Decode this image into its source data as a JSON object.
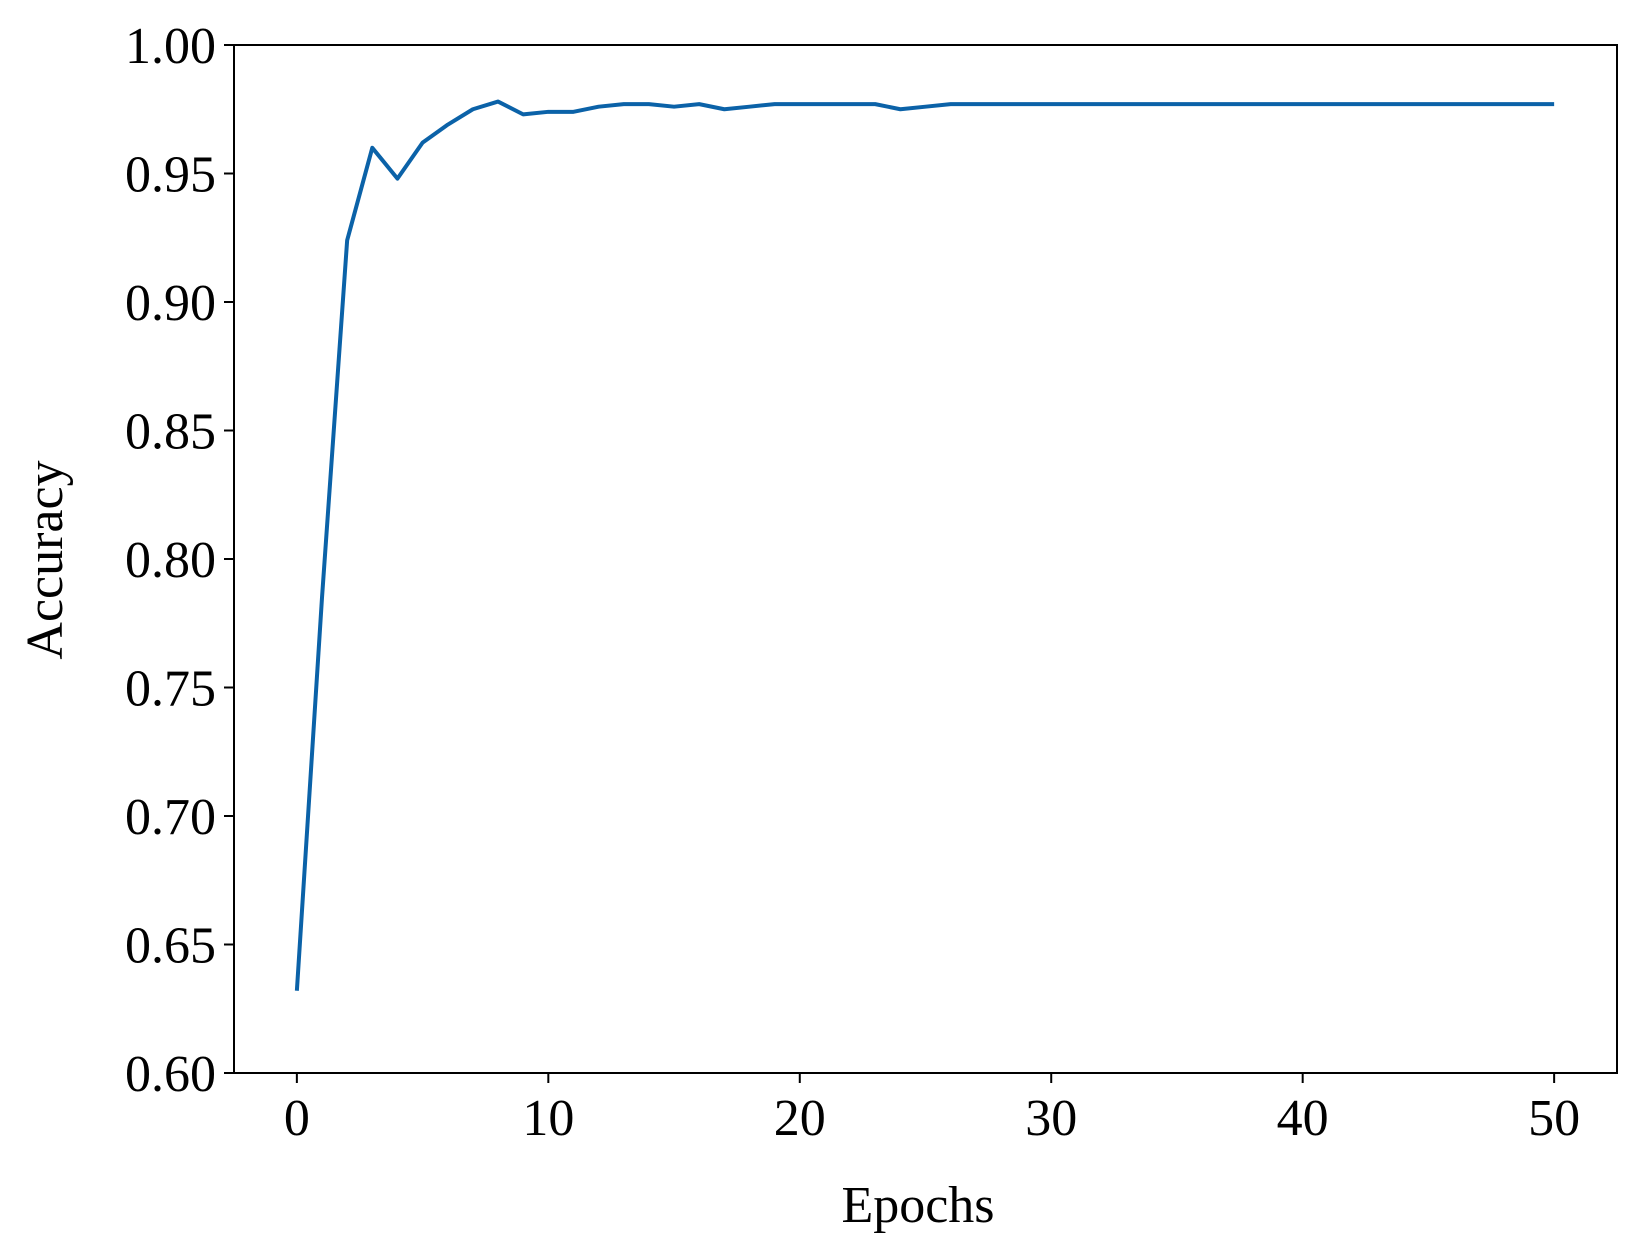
{
  "chart_data": {
    "type": "line",
    "xlabel": "Epochs",
    "ylabel": "Accuracy",
    "x": [
      0,
      1,
      2,
      3,
      4,
      5,
      6,
      7,
      8,
      9,
      10,
      11,
      12,
      13,
      14,
      15,
      16,
      17,
      18,
      19,
      20,
      21,
      22,
      23,
      24,
      25,
      26,
      27,
      28,
      29,
      30,
      31,
      32,
      33,
      34,
      35,
      36,
      37,
      38,
      39,
      40,
      41,
      42,
      43,
      44,
      45,
      46,
      47,
      48,
      49,
      50
    ],
    "series": [
      {
        "color": "#0b62a8",
        "values": [
          0.632,
          0.785,
          0.924,
          0.96,
          0.948,
          0.962,
          0.969,
          0.975,
          0.978,
          0.973,
          0.974,
          0.974,
          0.976,
          0.977,
          0.977,
          0.976,
          0.977,
          0.975,
          0.976,
          0.977,
          0.977,
          0.977,
          0.977,
          0.977,
          0.975,
          0.976,
          0.977,
          0.977,
          0.977,
          0.977,
          0.977,
          0.977,
          0.977,
          0.977,
          0.977,
          0.977,
          0.977,
          0.977,
          0.977,
          0.977,
          0.977,
          0.977,
          0.977,
          0.977,
          0.977,
          0.977,
          0.977,
          0.977,
          0.977,
          0.977,
          0.977
        ]
      }
    ],
    "xlim": [
      -2.5,
      52.5
    ],
    "ylim": [
      0.6,
      1.0
    ],
    "xticks": [
      0,
      10,
      20,
      30,
      40,
      50
    ],
    "yticks": [
      {
        "value": 0.6,
        "label": "0.60"
      },
      {
        "value": 0.65,
        "label": "0.65"
      },
      {
        "value": 0.7,
        "label": "0.70"
      },
      {
        "value": 0.75,
        "label": "0.75"
      },
      {
        "value": 0.8,
        "label": "0.80"
      },
      {
        "value": 0.85,
        "label": "0.85"
      },
      {
        "value": 0.9,
        "label": "0.90"
      },
      {
        "value": 0.95,
        "label": "0.95"
      },
      {
        "value": 1.0,
        "label": "1.00"
      }
    ],
    "grid": false
  }
}
